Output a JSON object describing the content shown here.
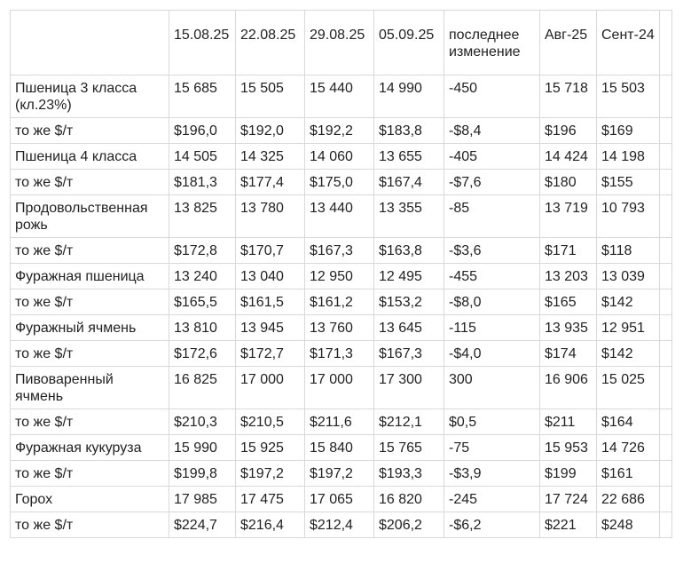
{
  "headers": [
    "",
    "15.08.25",
    "22.08.25",
    "29.08.25",
    "05.09.25",
    "последнее изменение",
    "Авг-25",
    "Сент-24",
    ""
  ],
  "rows": [
    [
      "Пшеница 3 класса (кл.23%)",
      "15 685",
      "15 505",
      "15 440",
      "14 990",
      "-450",
      "15 718",
      "15 503",
      ""
    ],
    [
      "то же $/т",
      "$196,0",
      "$192,0",
      "$192,2",
      "$183,8",
      "-$8,4",
      "$196",
      "$169",
      ""
    ],
    [
      "Пшеница 4 класса",
      "14 505",
      "14 325",
      "14 060",
      "13 655",
      "-405",
      "14 424",
      "14 198",
      ""
    ],
    [
      "то же $/т",
      "$181,3",
      "$177,4",
      "$175,0",
      "$167,4",
      "-$7,6",
      "$180",
      "$155",
      ""
    ],
    [
      "Продовольственная рожь",
      "13 825",
      "13 780",
      "13 440",
      "13 355",
      "-85",
      "13 719",
      "10 793",
      ""
    ],
    [
      "то же $/т",
      "$172,8",
      "$170,7",
      "$167,3",
      "$163,8",
      "-$3,6",
      "$171",
      "$118",
      ""
    ],
    [
      "Фуражная пшеница",
      "13 240",
      "13 040",
      "12 950",
      "12 495",
      "-455",
      "13 203",
      "13 039",
      ""
    ],
    [
      "то же $/т",
      "$165,5",
      "$161,5",
      "$161,2",
      "$153,2",
      "-$8,0",
      "$165",
      "$142",
      ""
    ],
    [
      "Фуражный ячмень",
      "13 810",
      "13 945",
      "13 760",
      "13 645",
      "-115",
      "13 935",
      "12 951",
      ""
    ],
    [
      "то же $/т",
      "$172,6",
      "$172,7",
      "$171,3",
      "$167,3",
      "-$4,0",
      "$174",
      "$142",
      ""
    ],
    [
      "Пивоваренный ячмень",
      "16 825",
      "17 000",
      "17 000",
      "17 300",
      "300",
      "16 906",
      "15 025",
      ""
    ],
    [
      "то же $/т",
      "$210,3",
      "$210,5",
      "$211,6",
      "$212,1",
      "$0,5",
      "$211",
      "$164",
      ""
    ],
    [
      "Фуражная кукуруза",
      "15 990",
      "15 925",
      "15 840",
      "15 765",
      "-75",
      "15 953",
      "14 726",
      ""
    ],
    [
      "то же $/т",
      "$199,8",
      "$197,2",
      "$197,2",
      "$193,3",
      "-$3,9",
      "$199",
      "$161",
      ""
    ],
    [
      "Горох",
      "17 985",
      "17 475",
      "17 065",
      "16 820",
      "-245",
      "17 724",
      "22 686",
      ""
    ],
    [
      "то же $/т",
      "$224,7",
      "$216,4",
      "$212,4",
      "$206,2",
      "-$6,2",
      "$221",
      "$248",
      ""
    ]
  ]
}
